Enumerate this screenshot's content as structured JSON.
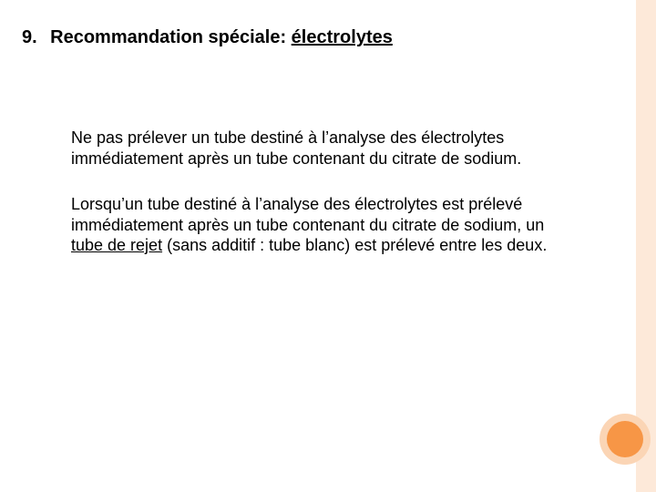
{
  "slide": {
    "background_color": "#ffffff",
    "heading": {
      "number": "9.",
      "prefix": "Recommandation spéciale: ",
      "underlined": "électrolytes",
      "font_size_pt": 20,
      "font_weight": "bold",
      "color": "#000000"
    },
    "body": {
      "font_size_pt": 18,
      "color": "#000000",
      "paragraphs": [
        {
          "text_before": "Ne pas prélever un tube destiné à l’analyse des électrolytes immédiatement après un tube contenant du citrate de sodium.",
          "underlined": "",
          "text_after": ""
        },
        {
          "text_before": " Lorsqu’un tube destiné à l’analyse des électrolytes est prélevé immédiatement après un tube contenant du citrate de sodium, un ",
          "underlined": "tube de rejet",
          "text_after": " (sans additif : tube blanc) est prélevé entre les deux."
        }
      ]
    },
    "accent": {
      "stripe_color": "#fde9d9",
      "circle_outer_color": "#fbd5b5",
      "circle_inner_color": "#f79646"
    }
  }
}
